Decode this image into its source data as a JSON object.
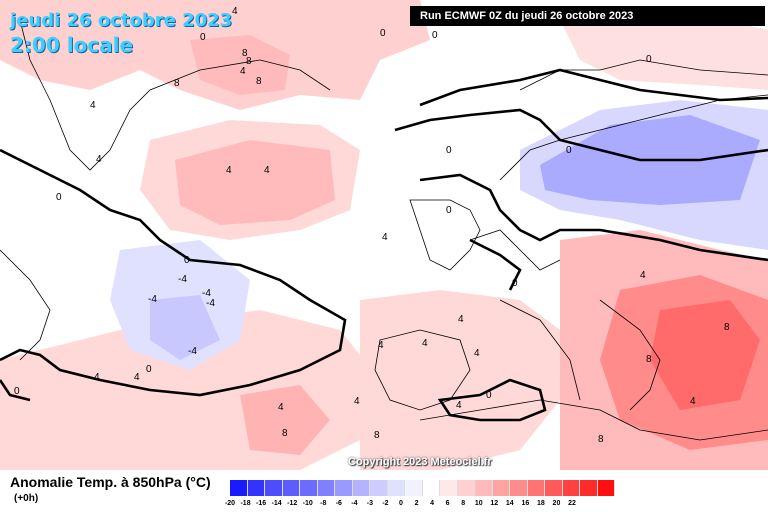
{
  "title": {
    "date": "jeudi 26 octobre 2023",
    "time": "2:00 locale"
  },
  "run_banner": "Run ECMWF 0Z du jeudi 26 octobre 2023",
  "copyright": "Copyright 2023 Meteociel.fr",
  "legend": {
    "title": "Anomalie Temp. à 850hPa (°C)",
    "subtitle": "(+0h)",
    "values": [
      "-20",
      "-18",
      "-16",
      "-14",
      "-12",
      "-10",
      "-8",
      "-6",
      "-4",
      "-3",
      "-2",
      "0",
      "2",
      "4",
      "6",
      "8",
      "10",
      "12",
      "14",
      "16",
      "18",
      "20",
      "22"
    ],
    "colors": [
      "#1a1aff",
      "#3333ff",
      "#4d4dff",
      "#5c5cff",
      "#6b6bff",
      "#8080ff",
      "#9999ff",
      "#b3b3ff",
      "#ccccff",
      "#e0e0ff",
      "#f2f2ff",
      "#ffffff",
      "#ffe8e8",
      "#ffd0d0",
      "#ffbbbb",
      "#ffa3a3",
      "#ff8b8b",
      "#ff7373",
      "#ff5b5b",
      "#ff4040",
      "#ff2a2a",
      "#ff1010"
    ]
  },
  "contour_labels": [
    {
      "text": "4"
    },
    {
      "text": "0"
    },
    {
      "text": "8"
    },
    {
      "text": "8"
    },
    {
      "text": "4"
    },
    {
      "text": "8"
    },
    {
      "text": "8"
    },
    {
      "text": "4"
    },
    {
      "text": "4"
    },
    {
      "text": "0"
    },
    {
      "text": "4"
    },
    {
      "text": "4"
    },
    {
      "text": "0"
    },
    {
      "text": "0"
    },
    {
      "text": "0"
    },
    {
      "text": "0"
    },
    {
      "text": "0"
    },
    {
      "text": "4"
    },
    {
      "text": "-4"
    },
    {
      "text": "-4"
    },
    {
      "text": "-4"
    },
    {
      "text": "-4"
    },
    {
      "text": "-4"
    },
    {
      "text": "4"
    },
    {
      "text": "4"
    },
    {
      "text": "8"
    },
    {
      "text": "4"
    },
    {
      "text": "8"
    },
    {
      "text": "8"
    },
    {
      "text": "8"
    },
    {
      "text": "4"
    },
    {
      "text": "4"
    },
    {
      "text": "8"
    },
    {
      "text": "4"
    },
    {
      "text": "4"
    },
    {
      "text": "0"
    },
    {
      "text": "0"
    },
    {
      "text": "0"
    },
    {
      "text": "4"
    },
    {
      "text": "4"
    },
    {
      "text": "0"
    },
    {
      "text": "4"
    },
    {
      "text": "4"
    },
    {
      "text": "0"
    },
    {
      "text": "0"
    }
  ]
}
